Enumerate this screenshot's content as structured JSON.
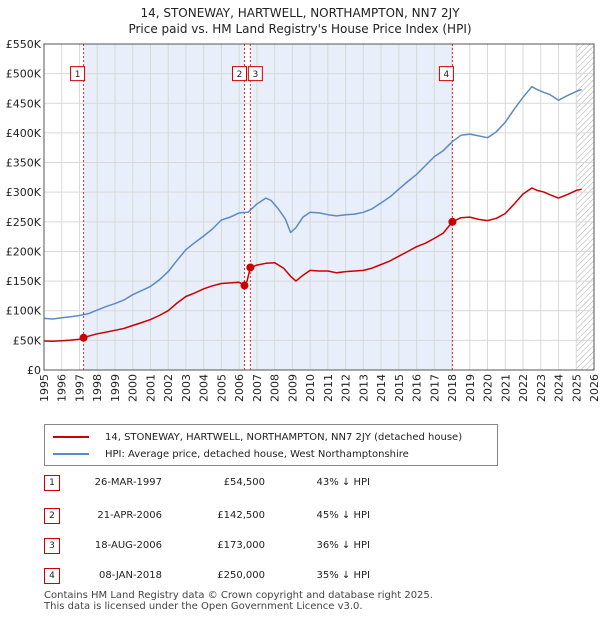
{
  "header": {
    "title_line1": "14, STONEWAY, HARTWELL, NORTHAMPTON, NN7 2JY",
    "title_line2": "Price paid vs. HM Land Registry's House Price Index (HPI)"
  },
  "legend": {
    "property_label": "14, STONEWAY, HARTWELL, NORTHAMPTON, NN7 2JY (detached house)",
    "hpi_label": "HPI: Average price, detached house, West Northamptonshire"
  },
  "transactions": [
    {
      "num": "1",
      "date": "26-MAR-1997",
      "price": "£54,500",
      "hpi": "43% ↓ HPI"
    },
    {
      "num": "2",
      "date": "21-APR-2006",
      "price": "£142,500",
      "hpi": "45% ↓ HPI"
    },
    {
      "num": "3",
      "date": "18-AUG-2006",
      "price": "£173,000",
      "hpi": "36% ↓ HPI"
    },
    {
      "num": "4",
      "date": "08-JAN-2018",
      "price": "£250,000",
      "hpi": "35% ↓ HPI"
    }
  ],
  "footer": {
    "line1": "Contains HM Land Registry data © Crown copyright and database right 2025.",
    "line2": "This data is licensed under the Open Government Licence v3.0."
  },
  "colors": {
    "property": "#cc0000",
    "hpi": "#5b8bc4",
    "shade": "#e8eefa",
    "grid": "#d9d9d9"
  },
  "chart_data": {
    "type": "line",
    "title": "Price paid vs. HM Land Registry's House Price Index (HPI)",
    "xlim": [
      1995,
      2026
    ],
    "ylim": [
      0,
      550000
    ],
    "x_ticks": [
      1995,
      1996,
      1997,
      1998,
      1999,
      2000,
      2001,
      2002,
      2003,
      2004,
      2005,
      2006,
      2007,
      2008,
      2009,
      2010,
      2011,
      2012,
      2013,
      2014,
      2015,
      2016,
      2017,
      2018,
      2019,
      2020,
      2021,
      2022,
      2023,
      2024,
      2025,
      2026
    ],
    "x_tick_labels": [
      "1995",
      "1996",
      "1997",
      "1998",
      "1999",
      "2000",
      "2001",
      "2002",
      "2003",
      "2004",
      "2005",
      "2006",
      "2007",
      "2008",
      "2009",
      "2010",
      "2011",
      "2012",
      "2013",
      "2014",
      "2015",
      "2016",
      "2017",
      "2018",
      "2019",
      "2020",
      "2021",
      "2022",
      "2023",
      "2024",
      "2025",
      "2026"
    ],
    "y_ticks": [
      0,
      50000,
      100000,
      150000,
      200000,
      250000,
      300000,
      350000,
      400000,
      450000,
      500000,
      550000
    ],
    "y_tick_labels": [
      "£0",
      "£50K",
      "£100K",
      "£150K",
      "£200K",
      "£250K",
      "£300K",
      "£350K",
      "£400K",
      "£450K",
      "£500K",
      "£550K"
    ],
    "shaded_periods": [
      [
        1997.23,
        2006.3
      ],
      [
        2006.63,
        2018.02
      ]
    ],
    "hatched_from": 2025.0,
    "series": [
      {
        "name": "HPI: Average price, detached house, West Northamptonshire",
        "x": [
          1995.0,
          1995.5,
          1996.0,
          1996.5,
          1997.0,
          1997.5,
          1998.0,
          1998.5,
          1999.0,
          1999.5,
          2000.0,
          2000.5,
          2001.0,
          2001.5,
          2002.0,
          2002.5,
          2003.0,
          2003.5,
          2004.0,
          2004.5,
          2005.0,
          2005.5,
          2006.0,
          2006.5,
          2007.0,
          2007.5,
          2007.8,
          2008.2,
          2008.6,
          2008.9,
          2009.2,
          2009.6,
          2010.0,
          2010.5,
          2011.0,
          2011.5,
          2012.0,
          2012.5,
          2013.0,
          2013.5,
          2014.0,
          2014.5,
          2015.0,
          2015.5,
          2016.0,
          2016.5,
          2017.0,
          2017.5,
          2018.0,
          2018.5,
          2019.0,
          2019.5,
          2020.0,
          2020.5,
          2021.0,
          2021.5,
          2022.0,
          2022.5,
          2022.8,
          2023.2,
          2023.5,
          2024.0,
          2024.5,
          2025.0,
          2025.3
        ],
        "y": [
          87000,
          86000,
          88000,
          90000,
          92000,
          95000,
          101000,
          107000,
          112000,
          118000,
          127000,
          134000,
          141000,
          152000,
          166000,
          185000,
          203000,
          215000,
          226000,
          238000,
          253000,
          258000,
          265000,
          266000,
          280000,
          290000,
          286000,
          272000,
          255000,
          232000,
          240000,
          258000,
          266000,
          265000,
          262000,
          260000,
          262000,
          263000,
          266000,
          272000,
          282000,
          292000,
          305000,
          318000,
          330000,
          345000,
          360000,
          370000,
          385000,
          396000,
          398000,
          395000,
          392000,
          402000,
          418000,
          440000,
          460000,
          478000,
          473000,
          468000,
          465000,
          455000,
          463000,
          470000,
          473000
        ]
      },
      {
        "name": "14, STONEWAY, HARTWELL, NORTHAMPTON, NN7 2JY (detached house)",
        "x": [
          1995.0,
          1995.5,
          1996.0,
          1996.5,
          1997.0,
          1997.23,
          1997.5,
          1998.0,
          1998.5,
          1999.0,
          1999.5,
          2000.0,
          2000.5,
          2001.0,
          2001.5,
          2002.0,
          2002.5,
          2003.0,
          2003.5,
          2004.0,
          2004.5,
          2005.0,
          2005.5,
          2006.0,
          2006.3,
          2006.45,
          2006.63,
          2007.0,
          2007.5,
          2008.0,
          2008.5,
          2008.9,
          2009.2,
          2009.6,
          2010.0,
          2010.5,
          2011.0,
          2011.5,
          2012.0,
          2012.5,
          2013.0,
          2013.5,
          2014.0,
          2014.5,
          2015.0,
          2015.5,
          2016.0,
          2016.5,
          2017.0,
          2017.5,
          2018.02,
          2018.5,
          2019.0,
          2019.5,
          2020.0,
          2020.5,
          2021.0,
          2021.5,
          2022.0,
          2022.5,
          2022.8,
          2023.2,
          2023.5,
          2024.0,
          2024.5,
          2025.0,
          2025.3
        ],
        "y": [
          49000,
          48500,
          49500,
          50500,
          52000,
          54500,
          57000,
          61000,
          64000,
          67000,
          70000,
          75000,
          80000,
          85000,
          92000,
          100000,
          113000,
          124000,
          130000,
          137000,
          142000,
          146000,
          147000,
          148000,
          142500,
          150000,
          173000,
          177000,
          180000,
          181000,
          172000,
          158000,
          150000,
          160000,
          168000,
          167000,
          167000,
          164000,
          166000,
          167000,
          168000,
          172000,
          178000,
          184000,
          192000,
          200000,
          208000,
          214000,
          222000,
          231000,
          250000,
          257000,
          258000,
          254000,
          252000,
          256000,
          264000,
          280000,
          297000,
          307000,
          303000,
          300000,
          296000,
          290000,
          296000,
          303000,
          305000
        ]
      }
    ],
    "markers": [
      {
        "label": "1",
        "x": 1997.23,
        "y": 54500,
        "box_y": 500000
      },
      {
        "label": "2",
        "x": 2006.3,
        "y": 142500,
        "box_y": 500000
      },
      {
        "label": "3",
        "x": 2006.63,
        "y": 173000,
        "box_y": 500000
      },
      {
        "label": "4",
        "x": 2018.02,
        "y": 250000,
        "box_y": 500000
      }
    ]
  }
}
